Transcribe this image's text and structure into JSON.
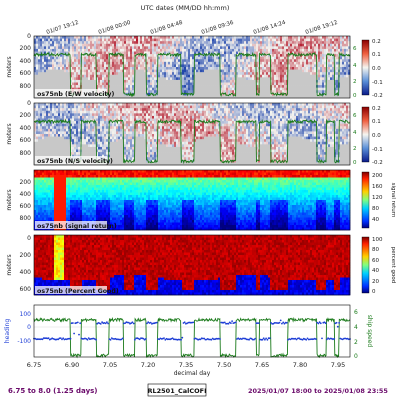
{
  "figure": {
    "top_axis_label": "UTC dates (MM/DD hh:mm)",
    "top_ticks": [
      "01/07 19:12",
      "01/08 00:00",
      "01/08 04:48",
      "01/08 09:36",
      "01/08 14:24",
      "01/08 19:12"
    ],
    "footer_left": "6.75 to 8.0 (1.25 days)",
    "footer_center": "RL2501_CalCOFI",
    "footer_right": "2025/01/07 18:00 to 2025/01/08 23:55",
    "colors": {
      "footer_text": "#6a0a6a",
      "ship_speed_line": "#1a7a1a",
      "heading_dots": "#1f3fd6",
      "no_data_gray": "#c8c8c8"
    }
  },
  "chart_data": [
    {
      "type": "heatmap",
      "title": "os75nb (E/W velocity)",
      "ylabel": "meters",
      "yticks": [
        0,
        200,
        400,
        600,
        800
      ],
      "ylim": [
        1000,
        0
      ],
      "xlim": [
        6.75,
        8.0
      ],
      "colorbar": {
        "colormap": "red-blue diverging",
        "range": [
          -0.2,
          0.2
        ],
        "ticks": [
          "0.2",
          "0.1",
          "0.0",
          "-0.1",
          "-0.2"
        ]
      },
      "overlay": {
        "name": "ship speed",
        "color": "#1a7a1a",
        "right_ticks": [
          "6",
          "4",
          "2",
          "0"
        ]
      }
    },
    {
      "type": "heatmap",
      "title": "os75nb (N/S velocity)",
      "ylabel": "meters",
      "yticks": [
        0,
        200,
        400,
        600,
        800
      ],
      "ylim": [
        1000,
        0
      ],
      "xlim": [
        6.75,
        8.0
      ],
      "colorbar": {
        "colormap": "red-blue diverging",
        "range": [
          -0.2,
          0.2
        ],
        "ticks": [
          "0.2",
          "0.1",
          "0.0",
          "-0.1",
          "-0.2"
        ]
      },
      "overlay": {
        "name": "ship speed",
        "color": "#1a7a1a",
        "right_ticks": [
          "6",
          "4",
          "2",
          "0"
        ]
      }
    },
    {
      "type": "heatmap",
      "title": "os75nb (signal return)",
      "ylabel": "meters",
      "yticks": [
        200,
        400,
        600,
        800
      ],
      "ylim": [
        1000,
        0
      ],
      "xlim": [
        6.75,
        8.0
      ],
      "colorbar": {
        "label": "signal return",
        "colormap": "jet",
        "range": [
          0,
          200
        ],
        "ticks": [
          "200",
          "160",
          "120",
          "80",
          "40"
        ]
      }
    },
    {
      "type": "heatmap",
      "title": "os75nb (Percent Good)",
      "ylabel": "meters",
      "yticks": [
        0,
        200,
        400,
        600
      ],
      "ylim": [
        700,
        0
      ],
      "xlim": [
        6.75,
        8.0
      ],
      "colorbar": {
        "label": "percent good",
        "colormap": "jet",
        "range": [
          0,
          100
        ],
        "ticks": [
          "100",
          "80",
          "60",
          "40",
          "20",
          "0"
        ]
      }
    },
    {
      "type": "line",
      "xlabel": "decimal day",
      "ylabel": "heading",
      "ylabel_right": "ship speed",
      "xlim": [
        6.75,
        8.0
      ],
      "xticks": [
        "6.75",
        "6.90",
        "7.05",
        "7.20",
        "7.35",
        "7.50",
        "7.65",
        "7.80",
        "7.95"
      ],
      "yticks_left": [
        "100",
        "0",
        "-100"
      ],
      "yticks_right": [
        "6",
        "4",
        "2",
        "0"
      ],
      "ylim_left": [
        -180,
        180
      ],
      "ylim_right": [
        0,
        7
      ],
      "stations": [
        [
          6.895,
          6.937
        ],
        [
          6.997,
          7.047
        ],
        [
          7.103,
          7.149
        ],
        [
          7.193,
          7.239
        ],
        [
          7.332,
          7.384
        ],
        [
          7.487,
          7.549
        ],
        [
          7.629,
          7.642
        ],
        [
          7.686,
          7.754
        ],
        [
          7.868,
          7.906
        ],
        [
          7.939,
          7.957
        ]
      ],
      "series": [
        {
          "color": "#1a7a1a",
          "underway_speed_kn": 5.0,
          "station_speed_kn": 0.2
        },
        {
          "color": "#1f3fd6",
          "underway_heading_deg": -55,
          "station_heading_deg": 55
        }
      ]
    }
  ]
}
